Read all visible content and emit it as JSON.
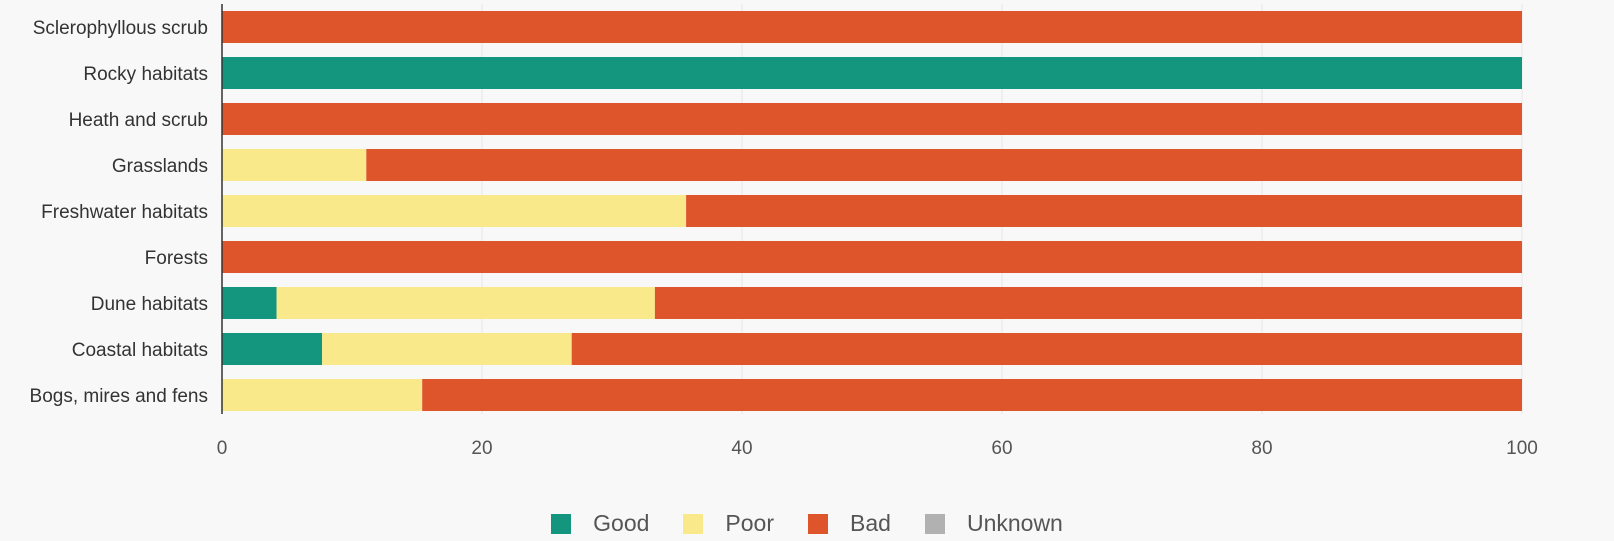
{
  "chart_data": {
    "type": "bar",
    "orientation": "horizontal",
    "stacked": true,
    "categories": [
      "Sclerophyllous scrub",
      "Rocky habitats",
      "Heath and scrub",
      "Grasslands",
      "Freshwater habitats",
      "Forests",
      "Dune habitats",
      "Coastal habitats",
      "Bogs, mires and fens"
    ],
    "series": [
      {
        "name": "Good",
        "color": "#13957e",
        "values": [
          0,
          100,
          0,
          0,
          0,
          0,
          4.2,
          7.7,
          0
        ]
      },
      {
        "name": "Poor",
        "color": "#f9e98a",
        "values": [
          0,
          0,
          0,
          11.1,
          35.7,
          0,
          29.1,
          19.2,
          15.4
        ]
      },
      {
        "name": "Bad",
        "color": "#de552c",
        "values": [
          100,
          0,
          100,
          88.9,
          64.3,
          100,
          66.7,
          73.1,
          84.6
        ]
      },
      {
        "name": "Unknown",
        "color": "#b1b1b1",
        "values": [
          0,
          0,
          0,
          0,
          0,
          0,
          0,
          0,
          0
        ]
      }
    ],
    "xlim": [
      0,
      100
    ],
    "ticks": [
      "0",
      "20",
      "40",
      "60",
      "80",
      "100"
    ],
    "title": "",
    "xlabel": "",
    "ylabel": "",
    "grid": true,
    "legend_position": "bottom"
  }
}
